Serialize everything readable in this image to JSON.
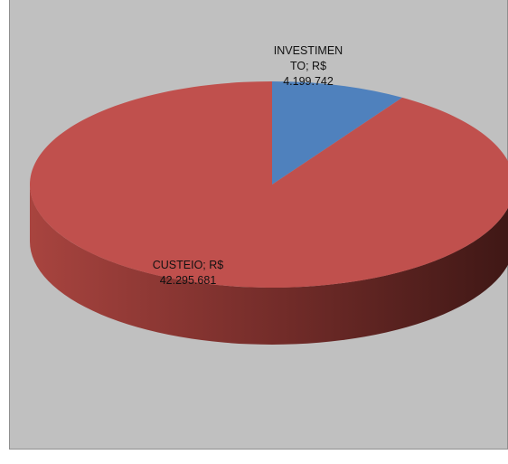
{
  "chart_data": {
    "type": "pie",
    "style": "3d",
    "title": "",
    "slices": [
      {
        "name": "INVESTIMENTO",
        "value": 4199742,
        "label": "INVESTIMEN\nTO;  R$\n4.199.742",
        "color": "#4f81bd"
      },
      {
        "name": "CUSTEIO",
        "value": 42295681,
        "label": "CUSTEIO;  R$\n42.295.681",
        "color": "#c0504d"
      }
    ],
    "background": "#c0c0c0",
    "legend": "none"
  }
}
